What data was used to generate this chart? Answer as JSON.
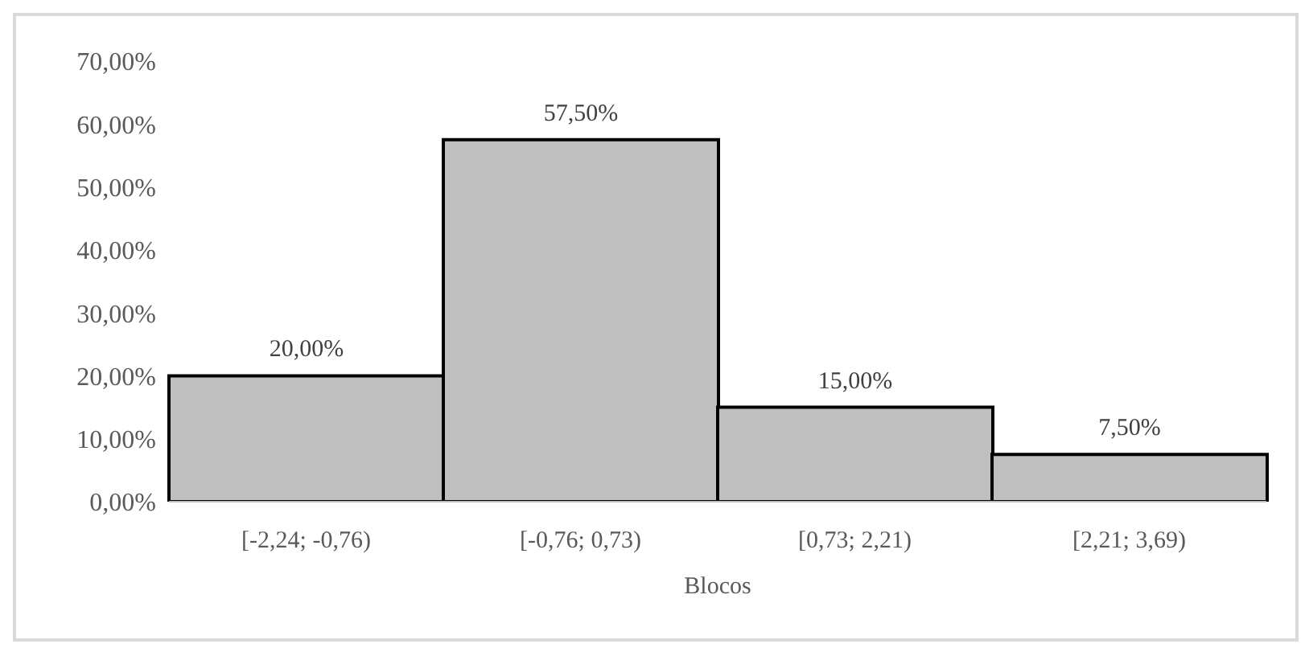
{
  "chart_data": {
    "type": "bar",
    "xlabel": "Blocos",
    "categories": [
      "[-2,24; -0,76)",
      "[-0,76; 0,73)",
      "[0,73; 2,21)",
      "[2,21; 3,69)"
    ],
    "values": [
      20,
      57.5,
      15,
      7.5
    ],
    "value_labels": [
      "20,00%",
      "57,50%",
      "15,00%",
      "7,50%"
    ],
    "color": "#bfbfbf",
    "ylim": [
      0,
      70
    ],
    "yticks": [
      {
        "value": 0,
        "label": "0,00%"
      },
      {
        "value": 10,
        "label": "10,00%"
      },
      {
        "value": 20,
        "label": "20,00%"
      },
      {
        "value": 30,
        "label": "30,00%"
      },
      {
        "value": 40,
        "label": "40,00%"
      },
      {
        "value": 50,
        "label": "50,00%"
      },
      {
        "value": 60,
        "label": "60,00%"
      },
      {
        "value": 70,
        "label": "70,00%"
      }
    ],
    "grid": false,
    "legend": false
  }
}
